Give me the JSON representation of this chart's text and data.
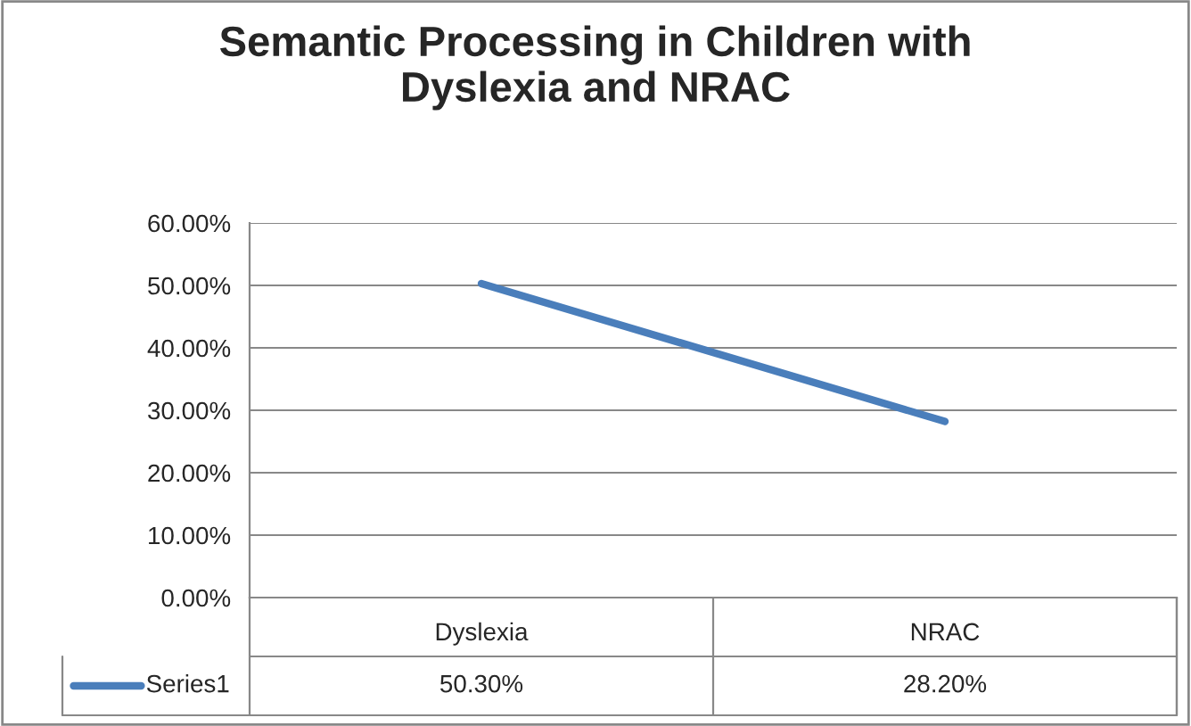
{
  "chart_data": {
    "type": "line",
    "title": "Semantic Processing in Children with\nDyslexia and NRAC",
    "categories": [
      "Dyslexia",
      "NRAC"
    ],
    "series": [
      {
        "name": "Series1",
        "color": "#4a7ebb",
        "values": [
          50.3,
          28.2
        ],
        "value_labels": [
          "50.30%",
          "28.20%"
        ]
      }
    ],
    "ylim": [
      0,
      60
    ],
    "yticks": [
      {
        "value": 0,
        "label": "0.00%"
      },
      {
        "value": 10,
        "label": "10.00%"
      },
      {
        "value": 20,
        "label": "20.00%"
      },
      {
        "value": 30,
        "label": "30.00%"
      },
      {
        "value": 40,
        "label": "40.00%"
      },
      {
        "value": 50,
        "label": "50.00%"
      },
      {
        "value": 60,
        "label": "60.00%"
      }
    ],
    "grid": "y",
    "legend": "bottom",
    "line_style": "solid"
  }
}
